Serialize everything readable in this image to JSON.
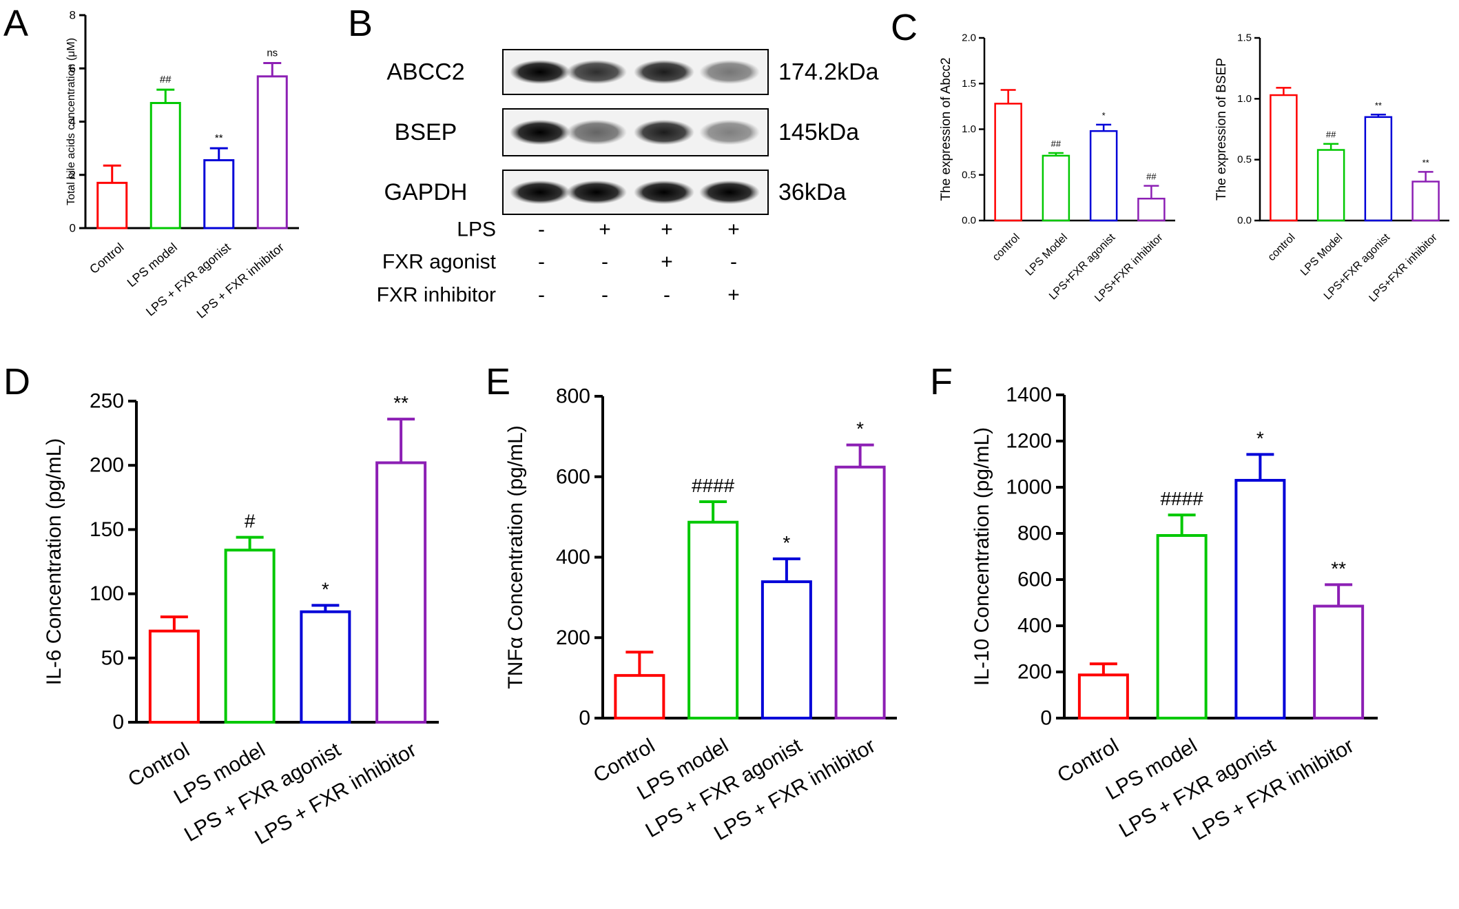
{
  "colors": {
    "Control": "#ff0000",
    "LPS model": "#00c800",
    "LPS + FXR agonist": "#0000d8",
    "LPS + FXR inhibitor": "#8c1fb4",
    "axis": "#000000"
  },
  "chart_data": [
    {
      "panel": "A",
      "type": "bar",
      "ylabel": "Total  bile acids concentration (μM)",
      "categories": [
        "Control",
        "LPS model",
        "LPS + FXR agonist",
        "LPS + FXR inhibitor"
      ],
      "values": [
        1.7,
        4.7,
        2.55,
        5.7
      ],
      "errors": [
        0.65,
        0.5,
        0.45,
        0.5
      ],
      "annotations": [
        "",
        "##",
        "**",
        "ns"
      ],
      "ylim": [
        0,
        8
      ],
      "yticks": [
        0,
        2,
        4,
        6,
        8
      ]
    },
    {
      "panel": "C",
      "type": "bar",
      "ylabel": "The expression of Abcc2",
      "categories": [
        "control",
        "LPS Model",
        "LPS+FXR agonist",
        "LPS+FXR inhibitor"
      ],
      "values": [
        1.28,
        0.71,
        0.98,
        0.24
      ],
      "errors": [
        0.15,
        0.03,
        0.07,
        0.14
      ],
      "annotations": [
        "",
        "##",
        "*",
        "##"
      ],
      "ylim": [
        0,
        2.0
      ],
      "yticks": [
        "0.0",
        "0.5",
        "1.0",
        "1.5",
        "2.0"
      ]
    },
    {
      "panel": "C",
      "type": "bar",
      "ylabel": "The expression of BSEP",
      "categories": [
        "control",
        "LPS Model",
        "LPS+FXR agonist",
        "LPS+FXR inhibitor"
      ],
      "values": [
        1.03,
        0.58,
        0.85,
        0.32
      ],
      "errors": [
        0.06,
        0.05,
        0.02,
        0.08
      ],
      "annotations": [
        "",
        "##",
        "**",
        "**"
      ],
      "ylim": [
        0,
        1.5
      ],
      "yticks": [
        "0.0",
        "0.5",
        "1.0",
        "1.5"
      ]
    },
    {
      "panel": "D",
      "type": "bar",
      "ylabel": "IL-6 Concentration (pg/mL)",
      "categories": [
        "Control",
        "LPS model",
        "LPS + FXR agonist",
        "LPS + FXR inhibitor"
      ],
      "values": [
        71,
        134,
        86,
        202
      ],
      "errors": [
        11,
        10,
        5,
        34
      ],
      "annotations": [
        "",
        "#",
        "*",
        "**"
      ],
      "ylim": [
        0,
        250
      ],
      "yticks": [
        0,
        50,
        100,
        150,
        200,
        250
      ]
    },
    {
      "panel": "E",
      "type": "bar",
      "ylabel": "TNFα Concentration (pg/mL)",
      "categories": [
        "Control",
        "LPS model",
        "LPS + FXR agonist",
        "LPS + FXR inhibitor"
      ],
      "values": [
        106,
        487,
        339,
        624
      ],
      "errors": [
        58,
        51,
        57,
        55
      ],
      "annotations": [
        "",
        "####",
        "*",
        "*"
      ],
      "ylim": [
        0,
        800
      ],
      "yticks": [
        0,
        200,
        400,
        600,
        800
      ]
    },
    {
      "panel": "F",
      "type": "bar",
      "ylabel": "IL-10 Concentration (pg/mL)",
      "categories": [
        "Control",
        "LPS model",
        "LPS + FXR agonist",
        "LPS + FXR inhibitor"
      ],
      "values": [
        187,
        791,
        1030,
        485
      ],
      "errors": [
        48,
        89,
        112,
        93
      ],
      "annotations": [
        "",
        "####",
        "*",
        "**"
      ],
      "ylim": [
        0,
        1400
      ],
      "yticks": [
        0,
        200,
        400,
        600,
        800,
        1000,
        1200,
        1400
      ]
    }
  ],
  "western_blot": {
    "panel": "B",
    "bands": [
      {
        "protein": "ABCC2",
        "size": "174.2kDa",
        "intensity": [
          1.0,
          0.75,
          0.85,
          0.35
        ]
      },
      {
        "protein": "BSEP",
        "size": "145kDa",
        "intensity": [
          1.0,
          0.45,
          0.85,
          0.3
        ]
      },
      {
        "protein": "GAPDH",
        "size": "36kDa",
        "intensity": [
          1.0,
          1.0,
          1.0,
          1.0
        ]
      }
    ],
    "conditions": [
      {
        "label": "LPS",
        "signs": [
          "-",
          "+",
          "+",
          "+"
        ]
      },
      {
        "label": "FXR agonist",
        "signs": [
          "-",
          "-",
          "+",
          "-"
        ]
      },
      {
        "label": "FXR inhibitor",
        "signs": [
          "-",
          "-",
          "-",
          "+"
        ]
      }
    ]
  }
}
